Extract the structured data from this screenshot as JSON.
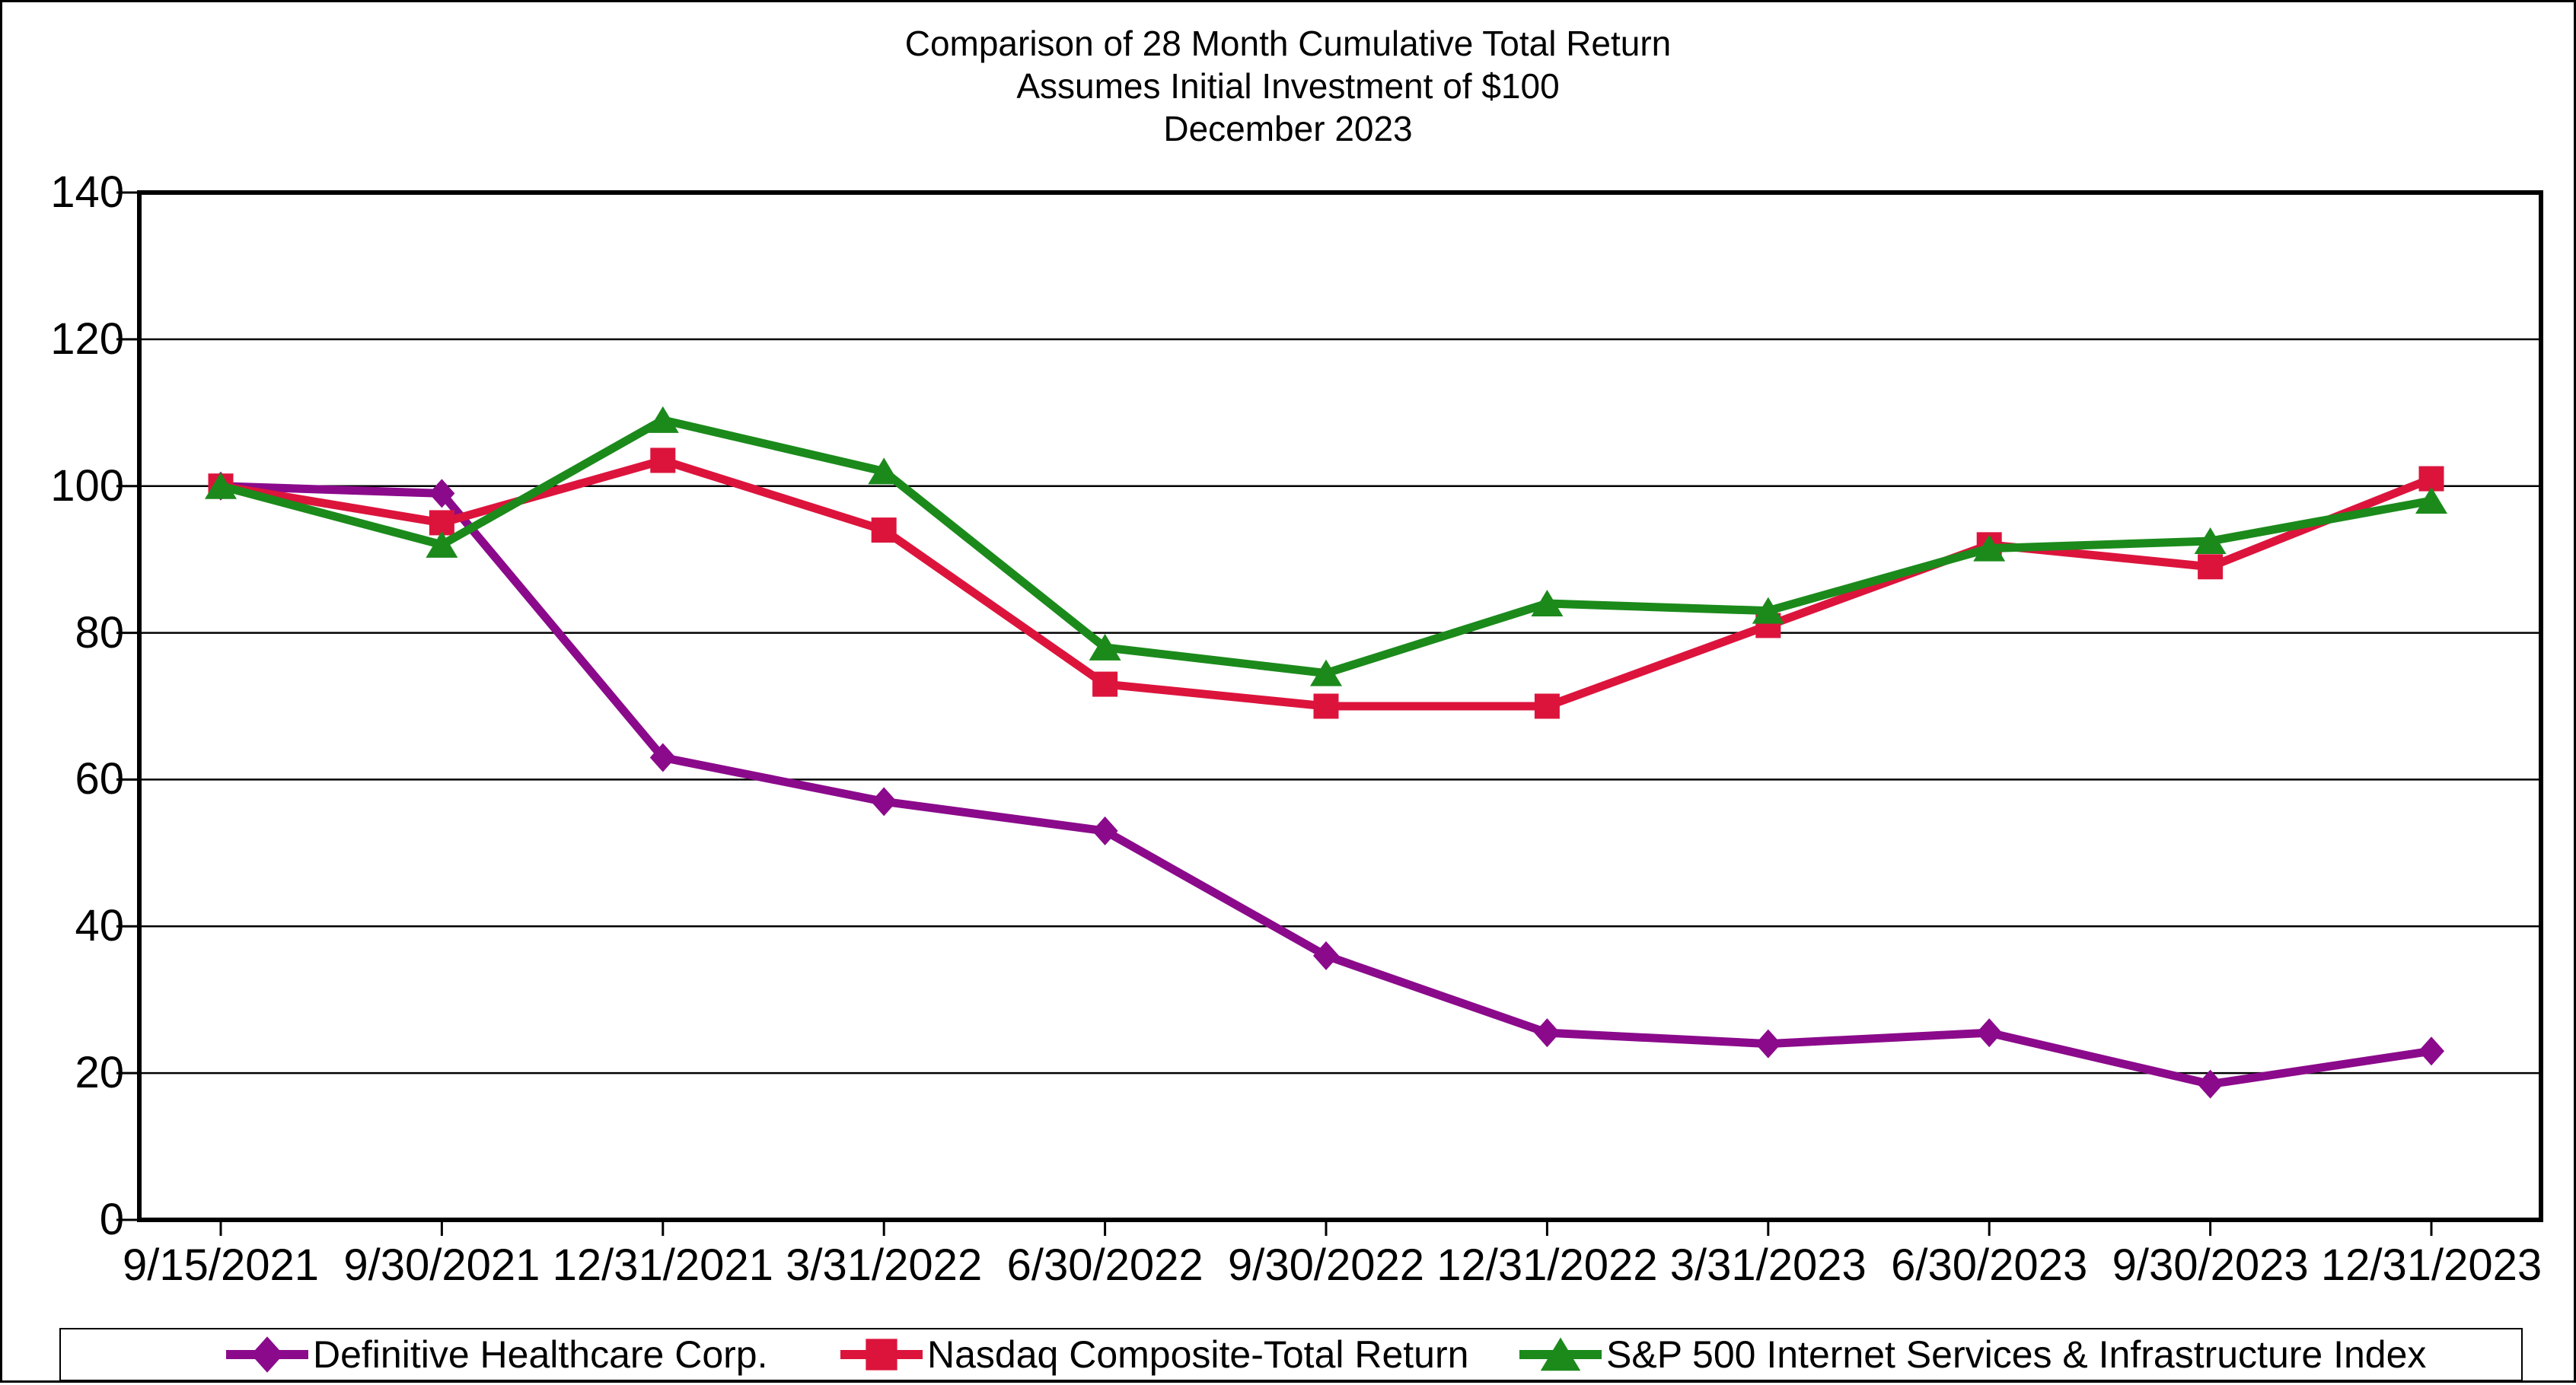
{
  "title": {
    "line1": "Comparison of 28 Month Cumulative Total Return",
    "line2": "Assumes Initial Investment of $100",
    "line3": "December 2023"
  },
  "chart_data": {
    "type": "line",
    "title": "Comparison of 28 Month Cumulative Total Return",
    "subtitle": "Assumes Initial Investment of $100",
    "period_label": "December 2023",
    "categories": [
      "9/15/2021",
      "9/30/2021",
      "12/31/2021",
      "3/31/2022",
      "6/30/2022",
      "9/30/2022",
      "12/31/2022",
      "3/31/2023",
      "6/30/2023",
      "9/30/2023",
      "12/31/2023"
    ],
    "series": [
      {
        "name": "Definitive Healthcare Corp.",
        "marker": "diamond",
        "color": "#8B0A8B",
        "values": [
          100,
          99,
          63,
          57,
          53,
          36,
          25.5,
          24,
          25.5,
          18.5,
          23
        ]
      },
      {
        "name": "Nasdaq Composite-Total Return",
        "marker": "square",
        "color": "#DC143C",
        "values": [
          100,
          95,
          103.5,
          94,
          73,
          70,
          70,
          81,
          92,
          89,
          101
        ]
      },
      {
        "name": "S&P 500 Internet Services & Infrastructure Index",
        "marker": "triangle",
        "color": "#1B8A1B",
        "values": [
          100,
          92,
          109,
          102,
          78,
          74.5,
          84,
          83,
          91.5,
          92.5,
          98
        ]
      }
    ],
    "ylim": [
      0,
      140
    ],
    "ytick_step": 20,
    "y_tick_labels": [
      "0",
      "20",
      "40",
      "60",
      "80",
      "100",
      "120",
      "140"
    ],
    "grid": true,
    "legend_position": "bottom",
    "axis_color": "#000000",
    "background_color": "#FFFFFF"
  }
}
